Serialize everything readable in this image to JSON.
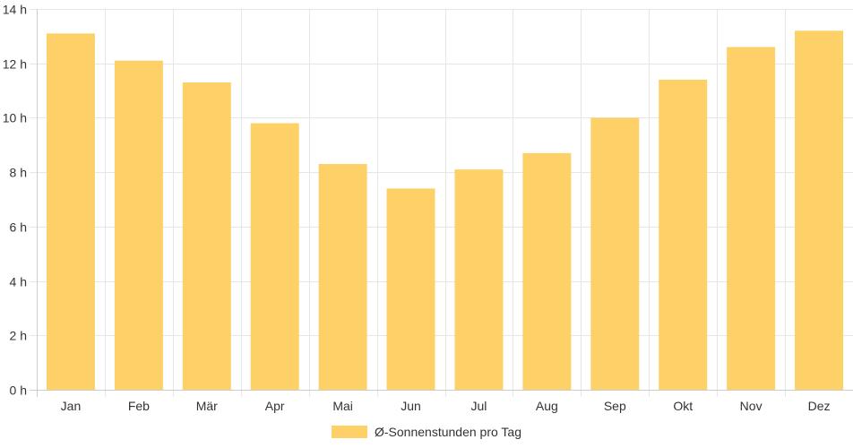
{
  "chart_data": {
    "type": "bar",
    "categories": [
      "Jan",
      "Feb",
      "Mär",
      "Apr",
      "Mai",
      "Jun",
      "Jul",
      "Aug",
      "Sep",
      "Okt",
      "Nov",
      "Dez"
    ],
    "series": [
      {
        "name": "Ø-Sonnenstunden pro Tag",
        "values": [
          13.1,
          12.1,
          11.3,
          9.8,
          8.3,
          7.4,
          8.1,
          8.7,
          10.0,
          11.4,
          12.6,
          13.2
        ],
        "color": "#fdd168"
      }
    ],
    "y_ticks": [
      "0 h",
      "2 h",
      "4 h",
      "6 h",
      "8 h",
      "10 h",
      "12 h",
      "14 h"
    ],
    "ylim": [
      0,
      14
    ],
    "y_unit": "h",
    "grid": true,
    "legend_position": "bottom",
    "colors": {
      "grid": "#e6e6e6",
      "axis": "#cccccc",
      "text": "#333333"
    }
  }
}
